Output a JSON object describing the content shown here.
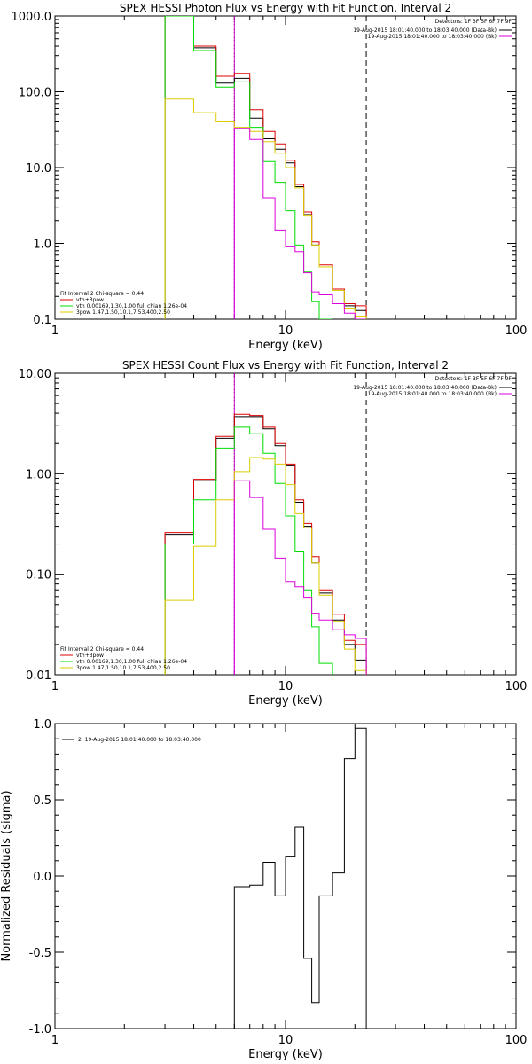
{
  "chart_data": [
    {
      "type": "line",
      "title": "SPEX HESSI Photon Flux vs Energy with Fit Function, Interval 2",
      "xlabel": "Energy (keV)",
      "ylabel": "",
      "x_scale": "log",
      "y_scale": "log",
      "xlim": [
        1,
        100
      ],
      "ylim": [
        0.1,
        1000
      ],
      "x_ticks": [
        "1",
        "10",
        "100"
      ],
      "y_ticks": [
        "1000.0",
        "100.0",
        "10.0",
        "1.0",
        "0.1"
      ],
      "y_tick_values": [
        1000,
        100,
        10,
        1,
        0.1
      ],
      "edges": [
        3,
        4,
        5,
        6,
        7,
        8,
        9,
        10,
        11,
        12,
        13,
        14,
        16,
        18,
        20,
        22.4
      ],
      "vlines": [
        {
          "x": 6,
          "style": "dotted",
          "color": "#000000"
        },
        {
          "x": 22.4,
          "style": "dashed",
          "color": "#000000"
        },
        {
          "x": 6,
          "style": "solid",
          "color": "#cc00cc"
        }
      ],
      "series": [
        {
          "color": "#000000",
          "values": [
            1000,
            380,
            130,
            150,
            45,
            24,
            17.5,
            11.5,
            5.6,
            2.4,
            0.95,
            0.49,
            0.24,
            0.15,
            0.13
          ]
        },
        {
          "color": "#dd0000",
          "values": [
            1000,
            400,
            160,
            175,
            58,
            30,
            20.5,
            12.5,
            6,
            2.6,
            1.05,
            0.52,
            0.25,
            0.16,
            0.15
          ]
        },
        {
          "color": "#00dd00",
          "values": [
            1000,
            350,
            115,
            135,
            34,
            12,
            6.4,
            2.7,
            0.95,
            0.42,
            0.17,
            0.1
          ]
        },
        {
          "color": "#ddcc00",
          "values": [
            80,
            53,
            40,
            34,
            30,
            22,
            15.5,
            10,
            5.4,
            2.3,
            0.95,
            0.49,
            0.24,
            0.14,
            0.11
          ]
        },
        {
          "color": "#dd00dd",
          "values": [
            null,
            null,
            null,
            33,
            23.5,
            4,
            1.5,
            0.9,
            0.78,
            0.41,
            0.23,
            0.21,
            0.16,
            0.12,
            0.1
          ]
        }
      ],
      "detectors_text": "Detectors: 1F 3F 5F 6F 7F 9F",
      "time_legend": [
        {
          "label": "19-Aug-2015 18:01:40.000 to 18:03:40.000 (Data-Bk)",
          "color": "#000000"
        },
        {
          "label": "19-Aug-2015 18:01:40.000 to 18:03:40.000 (Bk)",
          "color": "#dd00dd"
        }
      ],
      "fit_legend": {
        "title": "Fit Interval  2    Chi-square = 0.44",
        "entries": [
          {
            "label": "vth+3pow",
            "color": "#dd0000"
          },
          {
            "label": "vth 0.00169,1.30,1.00  full chian 1.26e-04",
            "color": "#00dd00"
          },
          {
            "label": "3pow 1.47,1.50,10.1,7.53,400,2.50",
            "color": "#ddcc00"
          }
        ]
      }
    },
    {
      "type": "line",
      "title": "SPEX HESSI Count Flux vs Energy with Fit Function, Interval 2",
      "xlabel": "Energy (keV)",
      "ylabel": "",
      "x_scale": "log",
      "y_scale": "log",
      "xlim": [
        1,
        100
      ],
      "ylim": [
        0.01,
        10
      ],
      "x_ticks": [
        "1",
        "10",
        "100"
      ],
      "y_ticks": [
        "10.00",
        "1.00",
        "0.10",
        "0.01"
      ],
      "y_tick_values": [
        10,
        1,
        0.1,
        0.01
      ],
      "edges": [
        3,
        4,
        5,
        6,
        7,
        8,
        9,
        10,
        11,
        12,
        13,
        14,
        16,
        18,
        20,
        22.4
      ],
      "vlines": [
        {
          "x": 6,
          "style": "dotted",
          "color": "#000000"
        },
        {
          "x": 22.4,
          "style": "dashed",
          "color": "#000000"
        },
        {
          "x": 6,
          "style": "solid",
          "color": "#cc00cc"
        }
      ],
      "series": [
        {
          "color": "#000000",
          "values": [
            0.25,
            0.85,
            2.25,
            3.7,
            3.7,
            2.8,
            1.9,
            1.2,
            0.52,
            0.3,
            0.13,
            0.065,
            0.035,
            0.02,
            0.014
          ]
        },
        {
          "color": "#dd0000",
          "values": [
            0.26,
            0.88,
            2.35,
            3.9,
            3.8,
            2.9,
            2,
            1.25,
            0.55,
            0.32,
            0.15,
            0.07,
            0.04,
            0.022,
            0.02
          ]
        },
        {
          "color": "#00dd00",
          "values": [
            0.2,
            0.55,
            1.8,
            2.9,
            2.5,
            1.6,
            0.8,
            0.38,
            0.17,
            0.07,
            0.03,
            0.013
          ]
        },
        {
          "color": "#ddcc00",
          "values": [
            0.055,
            0.19,
            0.55,
            1.05,
            1.45,
            1.4,
            1.25,
            0.78,
            0.4,
            0.29,
            0.13,
            0.062,
            0.034,
            0.018,
            0.011
          ]
        },
        {
          "color": "#dd00dd",
          "values": [
            null,
            null,
            null,
            0.85,
            0.58,
            0.28,
            0.145,
            0.085,
            0.075,
            0.059,
            0.041,
            0.035,
            0.028,
            0.025,
            0.023
          ]
        }
      ],
      "detectors_text": "Detectors: 1F 3F 5F 6F 7F 9F",
      "time_legend": [
        {
          "label": "19-Aug-2015 18:01:40.000 to 18:03:40.000 (Data-Bk)",
          "color": "#000000"
        },
        {
          "label": "19-Aug-2015 18:01:40.000 to 18:03:40.000 (Bk)",
          "color": "#dd00dd"
        }
      ],
      "fit_legend": {
        "title": "Fit Interval  2    Chi-square = 0.44",
        "entries": [
          {
            "label": "vth+3pow",
            "color": "#dd0000"
          },
          {
            "label": "vth 0.00169,1.30,1.00  full chian 1.26e-04",
            "color": "#00dd00"
          },
          {
            "label": "3pow 1.47,1.50,10.1,7.53,400,2.50",
            "color": "#ddcc00"
          }
        ]
      }
    },
    {
      "type": "line",
      "title": "",
      "xlabel": "Energy (keV)",
      "ylabel": "Normalized Residuals (sigma)",
      "x_scale": "log",
      "y_scale": "linear",
      "xlim": [
        1,
        100
      ],
      "ylim": [
        -1,
        1
      ],
      "x_ticks": [
        "1",
        "10",
        "100"
      ],
      "y_ticks": [
        "1.0",
        "0.5",
        "0.0",
        "-0.5",
        "-1.0"
      ],
      "y_tick_values": [
        1,
        0.5,
        0,
        -0.5,
        -1
      ],
      "edges": [
        6,
        7,
        8,
        9,
        10,
        11,
        12,
        13,
        14,
        16,
        18,
        20,
        22.4
      ],
      "series": [
        {
          "name": "2. 19-Aug-2015 18:01:40.000 to 18:03:40.000",
          "color": "#000000",
          "values": [
            -0.07,
            -0.06,
            0.09,
            -0.13,
            0.13,
            0.32,
            -0.54,
            -0.83,
            -0.13,
            0.02,
            0.77,
            0.97
          ]
        }
      ]
    }
  ]
}
